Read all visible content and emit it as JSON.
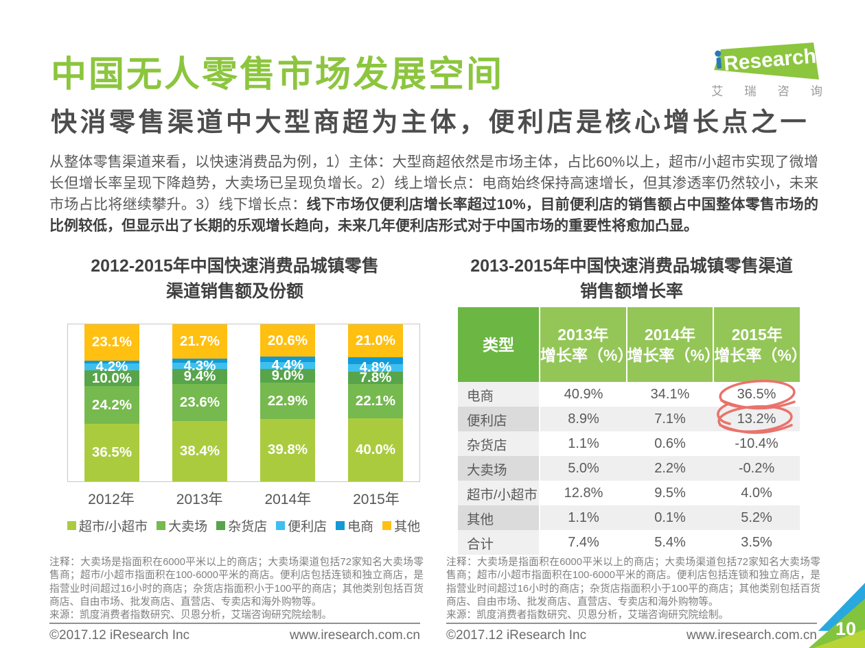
{
  "page": {
    "title": "中国无人零售市场发展空间",
    "subtitle": "快消零售渠道中大型商超为主体，便利店是核心增长点之一",
    "paragraph_regular": "从整体零售渠道来看，以快速消费品为例，1）主体：大型商超依然是市场主体，占比60%以上，超市/小超市实现了微增长但增长率呈现下降趋势，大卖场已呈现负增长。2）线上增长点：电商始终保持高速增长，但其渗透率仍然较小，未来市场占比将继续攀升。3）线下增长点：",
    "paragraph_bold": "线下市场仅便利店增长率超过10%，目前便利店的销售额占中国整体零售市场的比例较低，但显示出了长期的乐观增长趋向，未来几年便利店形式对于中国市场的重要性将愈加凸显。",
    "page_number": "10"
  },
  "logo": {
    "brand_i": "i",
    "brand_rest": "Research",
    "subtext_chars": [
      "艾",
      "瑞",
      "咨",
      "询"
    ]
  },
  "colors": {
    "accent_green": "#8CC53E",
    "table_header_green": "#93C657",
    "table_header_dark_green": "#6CB644",
    "highlight_red": "#E8736C"
  },
  "chart_data": [
    {
      "type": "bar",
      "stacked": true,
      "title": "2012-2015年中国快速消费品城镇零售\n渠道销售额及份额",
      "categories": [
        "2012年",
        "2013年",
        "2014年",
        "2015年"
      ],
      "series": [
        {
          "name": "超市/小超市",
          "color": "#ABCB3F",
          "values": [
            36.5,
            38.4,
            39.8,
            40.0
          ],
          "labels": [
            "36.5%",
            "38.4%",
            "39.8%",
            "40.0%"
          ]
        },
        {
          "name": "大卖场",
          "color": "#76B94E",
          "values": [
            24.2,
            23.6,
            22.9,
            22.1
          ],
          "labels": [
            "24.2%",
            "23.6%",
            "22.9%",
            "22.1%"
          ]
        },
        {
          "name": "杂货店",
          "color": "#58A44A",
          "values": [
            10.0,
            9.4,
            9.0,
            7.8
          ],
          "labels": [
            "10.0%",
            "9.4%",
            "9.0%",
            "7.8%"
          ]
        },
        {
          "name": "便利店",
          "color": "#3EC0EF",
          "values": [
            4.2,
            4.3,
            4.4,
            4.8
          ],
          "labels": [
            "4.2%",
            "4.3%",
            "4.4%",
            "4.8%"
          ]
        },
        {
          "name": "电商",
          "color": "#1399D6",
          "values": [
            2.0,
            2.6,
            3.3,
            4.3
          ],
          "labels": null
        },
        {
          "name": "其他",
          "color": "#FFC012",
          "values": [
            23.1,
            21.7,
            20.6,
            21.0
          ],
          "labels": [
            "23.1%",
            "21.7%",
            "20.6%",
            "21.0%"
          ]
        }
      ],
      "ylim": [
        0,
        100
      ],
      "legend_position": "bottom"
    },
    {
      "type": "table",
      "title": "2013-2015年中国快速消费品城镇零售渠道\n销售额增长率",
      "columns": [
        "类型",
        "2013年\n增长率（%）",
        "2014年\n增长率（%）",
        "2015年\n增长率（%）"
      ],
      "rows": [
        [
          "电商",
          "40.9%",
          "34.1%",
          "36.5%"
        ],
        [
          "便利店",
          "8.9%",
          "7.1%",
          "13.2%"
        ],
        [
          "杂货店",
          "1.1%",
          "0.6%",
          "-10.4%"
        ],
        [
          "大卖场",
          "5.0%",
          "2.2%",
          "-0.2%"
        ],
        [
          "超市/小超市",
          "12.8%",
          "9.5%",
          "4.0%"
        ],
        [
          "其他",
          "1.1%",
          "0.1%",
          "5.2%"
        ],
        [
          "合计",
          "7.4%",
          "5.4%",
          "3.5%"
        ]
      ],
      "circled_cells": [
        [
          0,
          3
        ],
        [
          1,
          3
        ]
      ]
    }
  ],
  "notes": {
    "annotation": "注释：大卖场是指面积在6000平米以上的商店；大卖场渠道包括72家知名大卖场零售商；超市/小超市指面积在100-6000平米的商店。便利店包括连锁和独立商店，是指营业时间超过16小时的商店；杂货店指面积小于100平的商店；其他类别包括百货商店、自由市场、批发商店、直营店、专卖店和海外购物等。",
    "source": "来源：凯度消费者指数研究、贝恩分析，艾瑞咨询研究院绘制。"
  },
  "footer": {
    "copyright": "©2017.12 iResearch Inc",
    "url": "www.iresearch.com.cn"
  }
}
